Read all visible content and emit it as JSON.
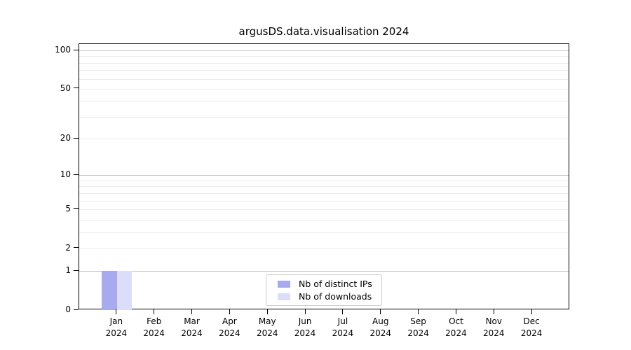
{
  "chart_data": {
    "type": "bar",
    "title": "argusDS.data.visualisation 2024",
    "categories": [
      "Jan",
      "Feb",
      "Mar",
      "Apr",
      "May",
      "Jun",
      "Jul",
      "Aug",
      "Sep",
      "Oct",
      "Nov",
      "Dec"
    ],
    "xtick_year": "2024",
    "series": [
      {
        "name": "Nb of distinct IPs",
        "color": "#a8aaf0",
        "values": [
          1,
          0,
          0,
          0,
          0,
          0,
          0,
          0,
          0,
          0,
          0,
          0
        ]
      },
      {
        "name": "Nb of downloads",
        "color": "#dcddf9",
        "values": [
          1,
          0,
          0,
          0,
          0,
          0,
          0,
          0,
          0,
          0,
          0,
          0
        ]
      }
    ],
    "yscale": "log1p",
    "ylim": [
      0,
      112
    ],
    "yticks": [
      0,
      1,
      2,
      5,
      10,
      20,
      50,
      100
    ],
    "major_gridlines": [
      1,
      10,
      100
    ],
    "minor_gridlines": [
      2,
      3,
      4,
      5,
      6,
      7,
      8,
      9,
      20,
      30,
      40,
      50,
      60,
      70,
      80,
      90
    ],
    "grid_color_major": "#c4c4c4",
    "grid_color_minor": "#ececec",
    "axis_color": "#000000",
    "legend": {
      "entries": [
        "Nb of distinct IPs",
        "Nb of downloads"
      ],
      "border_color": "#cccccc"
    }
  }
}
